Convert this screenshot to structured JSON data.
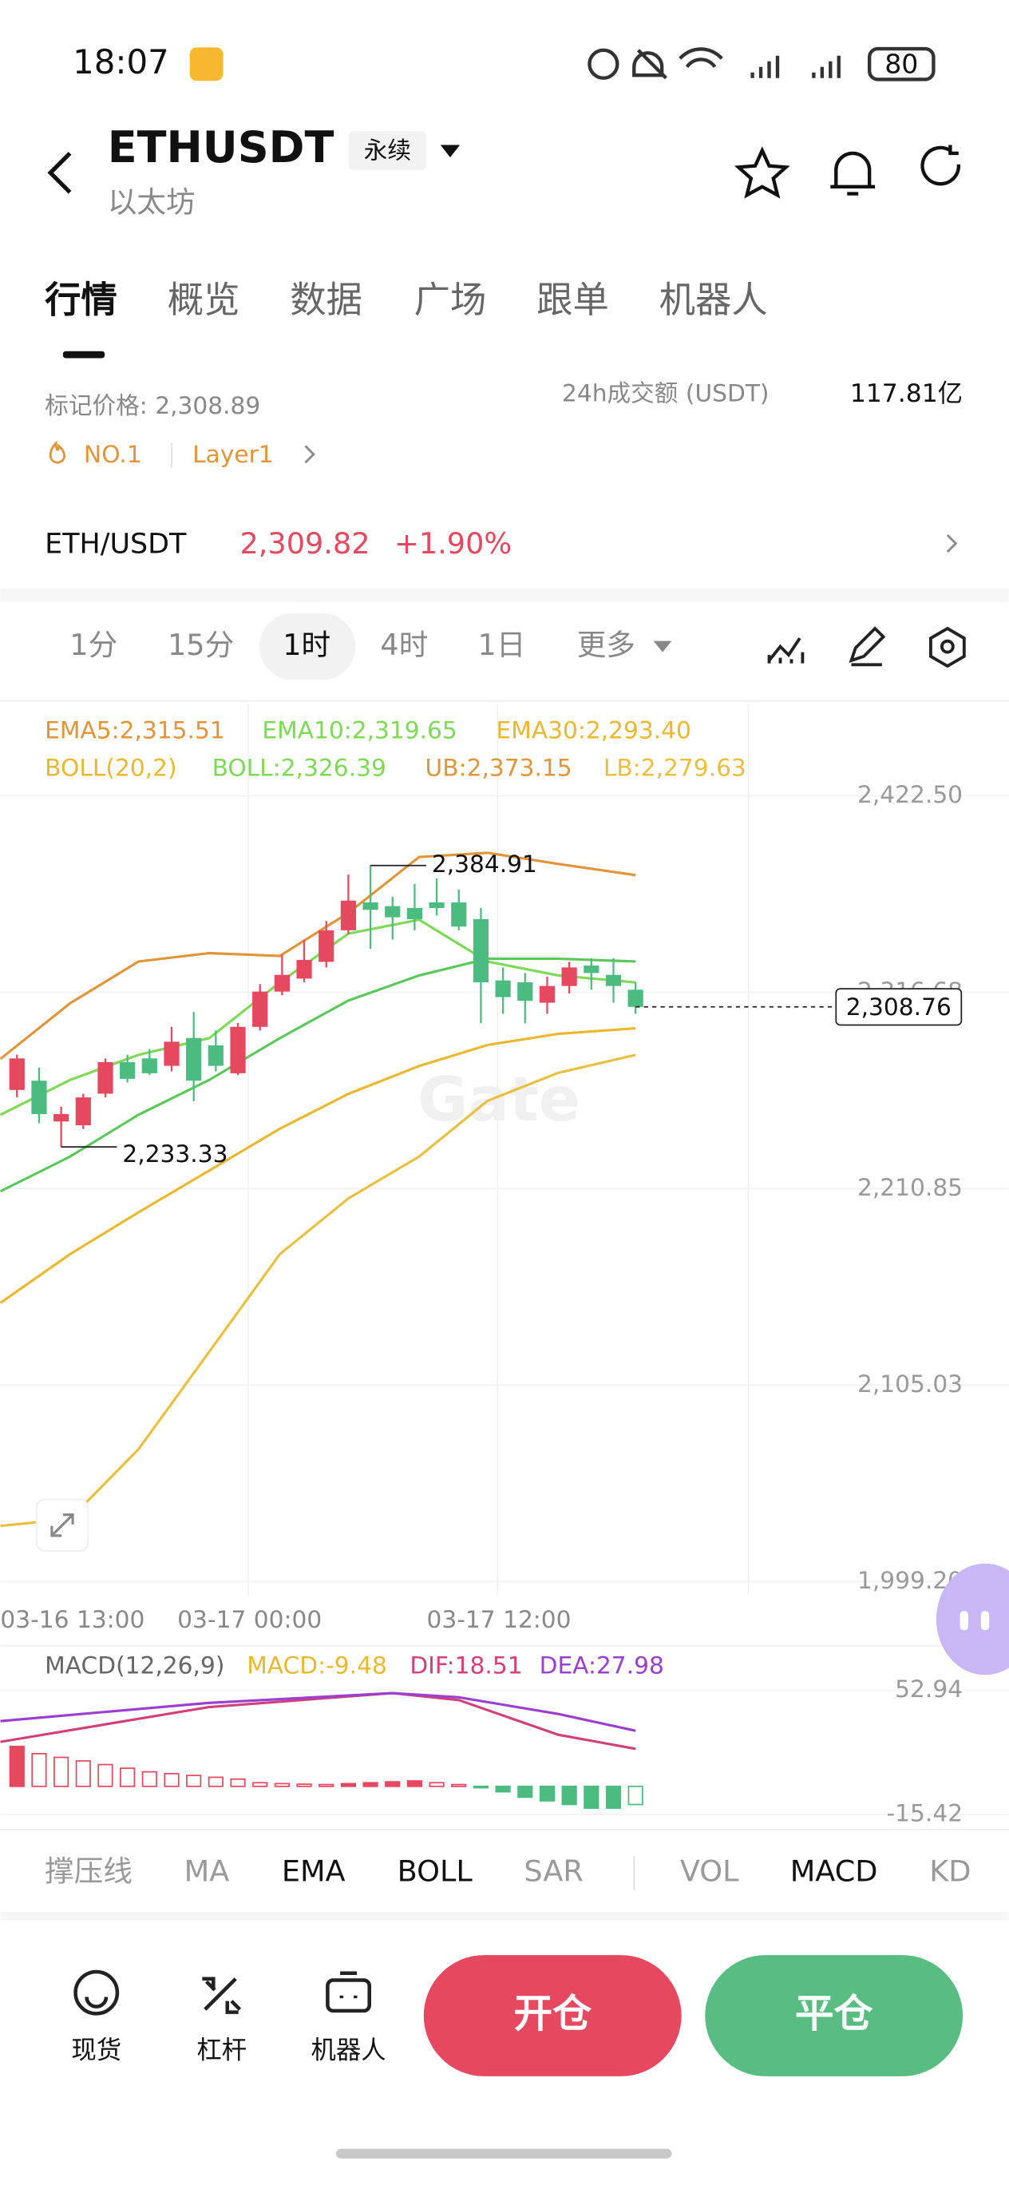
{
  "status": {
    "time": "18:07",
    "battery": "80"
  },
  "header": {
    "symbol": "ETHUSDT",
    "contract": "永续",
    "name": "以太坊"
  },
  "tabs": [
    "行情",
    "概览",
    "数据",
    "广场",
    "跟单",
    "机器人"
  ],
  "market": {
    "mark_price": "标记价格: 2,308.89",
    "volume_label": "24h成交额 (USDT)",
    "volume": "117.81亿",
    "rank": "NO.1",
    "tag": "Layer1"
  },
  "pair": {
    "name": "ETH/USDT",
    "price": "2,309.82",
    "change": "+1.90%"
  },
  "intervals": [
    "1分",
    "15分",
    "1时",
    "4时",
    "1日",
    "更多"
  ],
  "kline": {
    "legend": [
      "EMA5:2,315.51",
      "EMA10:2,319.65",
      "EMA30:2,293.40",
      "BOLL(20,2)",
      "BOLL:2,326.39",
      "UB:2,373.15",
      "LB:2,279.63"
    ],
    "watermark": "Gate",
    "ylim": [
      1999.2,
      2422.5
    ],
    "yticks": [
      {
        "value": 2422.5,
        "label": "2,422.50"
      },
      {
        "value": 2316.68,
        "label": "2,316.68"
      },
      {
        "value": 2210.85,
        "label": "2,210.85"
      },
      {
        "value": 2105.03,
        "label": "2,105.03"
      },
      {
        "value": 1999.2,
        "label": "1,999.20"
      }
    ],
    "x_labels": [
      "03-16 13:00",
      "03-17 00:00",
      "03-17 12:00"
    ],
    "candles": [
      [
        2264,
        2283,
        2260,
        2281
      ],
      [
        2269,
        2276,
        2246,
        2251
      ],
      [
        2247,
        2255,
        2233.33,
        2251
      ],
      [
        2245,
        2262,
        2243,
        2260
      ],
      [
        2262,
        2281,
        2260,
        2279
      ],
      [
        2279,
        2283,
        2268,
        2270
      ],
      [
        2281,
        2286,
        2272,
        2273
      ],
      [
        2277,
        2298,
        2274,
        2290
      ],
      [
        2292,
        2306,
        2258,
        2269
      ],
      [
        2288,
        2296,
        2274,
        2277
      ],
      [
        2273,
        2300,
        2272,
        2298
      ],
      [
        2298,
        2321,
        2296,
        2317
      ],
      [
        2317,
        2337,
        2315,
        2326
      ],
      [
        2324,
        2345,
        2322,
        2334
      ],
      [
        2333,
        2355,
        2330,
        2350
      ],
      [
        2350,
        2380,
        2348,
        2366
      ],
      [
        2365,
        2384.91,
        2340,
        2361
      ],
      [
        2363,
        2368,
        2345,
        2357
      ],
      [
        2362,
        2375,
        2350,
        2356
      ],
      [
        2365,
        2378,
        2358,
        2362
      ],
      [
        2365,
        2372,
        2350,
        2352
      ],
      [
        2356,
        2362,
        2300,
        2322
      ],
      [
        2323,
        2330,
        2305,
        2314
      ],
      [
        2322,
        2327,
        2300,
        2312
      ],
      [
        2311,
        2325,
        2305,
        2320
      ],
      [
        2320,
        2333,
        2316,
        2330
      ],
      [
        2331,
        2335,
        2318,
        2327
      ],
      [
        2326,
        2335,
        2311,
        2320
      ],
      [
        2318,
        2322,
        2305,
        2308.76
      ]
    ],
    "up_color": "#e5485f",
    "down_color": "#4cbb7f",
    "line_x": [
      -0.75,
      2.4,
      5.5,
      8.7,
      11.9,
      15,
      18.2,
      21.3,
      24.5,
      28
    ],
    "lines": [
      {
        "color": "#e0953a",
        "values": [
          2280.7,
          2310.7,
          2333.2,
          2337.7,
          2336.2,
          2359.4,
          2389.5,
          2391.7,
          2385.7,
          2379.7
        ]
      },
      {
        "color": "#7ed957",
        "values": [
          2250.6,
          2269.4,
          2282.9,
          2291.9,
          2321.9,
          2348.2,
          2355.7,
          2333.2,
          2325.7,
          2321.9
        ]
      },
      {
        "color": "#5bc85b",
        "values": [
          2209.4,
          2228.1,
          2250.6,
          2269.4,
          2291.9,
          2312.2,
          2325.7,
          2334.7,
          2334.7,
          2333.2
        ]
      },
      {
        "color": "#e8b830",
        "values": [
          2149.3,
          2175.6,
          2198.1,
          2220.6,
          2243.1,
          2261.9,
          2276.9,
          2288.2,
          2294.2,
          2297.2
        ]
      },
      {
        "color": "#e8c040",
        "values": [
          2029.2,
          2033.0,
          2070.5,
          2123.0,
          2175.6,
          2205.6,
          2228.1,
          2258.1,
          2273.2,
          2282.9
        ]
      }
    ],
    "high": {
      "value": 2384.91,
      "label": "2,384.91"
    },
    "low": {
      "value": 2233.33,
      "label": "2,233.33"
    },
    "last_price": {
      "value": 2308.76,
      "label": "2,308.76"
    }
  },
  "macd": {
    "legend": [
      "MACD(12,26,9)",
      "MACD:-9.48",
      "DIF:18.51",
      "DEA:27.98"
    ],
    "ylim": [
      -15.42,
      52.94
    ],
    "yticks": [
      {
        "value": 52.94,
        "label": "52.94"
      },
      {
        "value": -15.42,
        "label": "-15.42"
      }
    ],
    "histogram": [
      22,
      18,
      16,
      14,
      12,
      10,
      8,
      7,
      6,
      5,
      4,
      2,
      1.5,
      1.2,
      1,
      1.5,
      2,
      2.5,
      3,
      2,
      1,
      -0.5,
      -3,
      -6,
      -8,
      -10,
      -12,
      -12,
      -10
    ],
    "line_x": [
      -0.75,
      8.7,
      17,
      20,
      24.5,
      28
    ],
    "lines": [
      {
        "color": "#d0407a",
        "values": [
          24.5,
          43.7,
          51.4,
          47.6,
          28.4,
          20.7
        ]
      },
      {
        "color": "#9b3fd0",
        "values": [
          36,
          46,
          51.4,
          49.1,
          39.9,
          30.7
        ]
      }
    ]
  },
  "indicators": [
    "撑压线",
    "MA",
    "EMA",
    "BOLL",
    "SAR",
    "VOL",
    "MACD",
    "KD"
  ],
  "bottom": {
    "items": [
      "现货",
      "杠杆",
      "机器人"
    ],
    "open": "开仓",
    "close": "平仓"
  }
}
